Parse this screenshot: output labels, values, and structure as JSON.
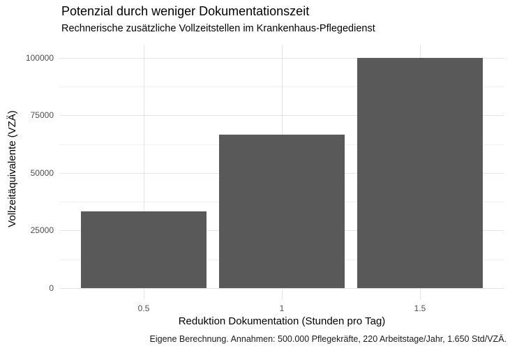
{
  "chart": {
    "title": "Potenzial durch weniger Dokumentationszeit",
    "subtitle": "Rechnerische zusätzliche Vollzeitstellen im Krankenhaus-Pflegedienst",
    "caption": "Eigene Berechnung. Annahmen: 500.000 Pflegekräfte, 220 Arbeitstage/Jahr, 1.650 Std/VZÄ."
  },
  "chart_data": {
    "type": "bar",
    "title": "Potenzial durch weniger Dokumentationszeit",
    "subtitle": "Rechnerische zusätzliche Vollzeitstellen im Krankenhaus-Pflegedienst",
    "caption": "Eigene Berechnung. Annahmen: 500.000 Pflegekräfte, 220 Arbeitstage/Jahr, 1.650 Std/VZÄ.",
    "categories": [
      "0.5",
      "1",
      "1.5"
    ],
    "values": [
      33333,
      66667,
      100000
    ],
    "xlabel": "Reduktion Dokumentation (Stunden pro Tag)",
    "ylabel": "Vollzeitäquivalente (VZÄ)",
    "ylim": [
      0,
      100000
    ],
    "yticks": [
      0,
      25000,
      50000,
      75000,
      100000
    ],
    "ytick_labels": [
      "0",
      "25000",
      "50000",
      "75000",
      "100000"
    ],
    "minor_yticks": [
      12500,
      37500,
      62500,
      87500
    ],
    "grid": true,
    "legend": "none",
    "bar_color": "#595959",
    "grid_major_color": "#e4e4e4",
    "grid_minor_color": "#f1f1f1",
    "tick_label_color": "#4d4d4d"
  }
}
